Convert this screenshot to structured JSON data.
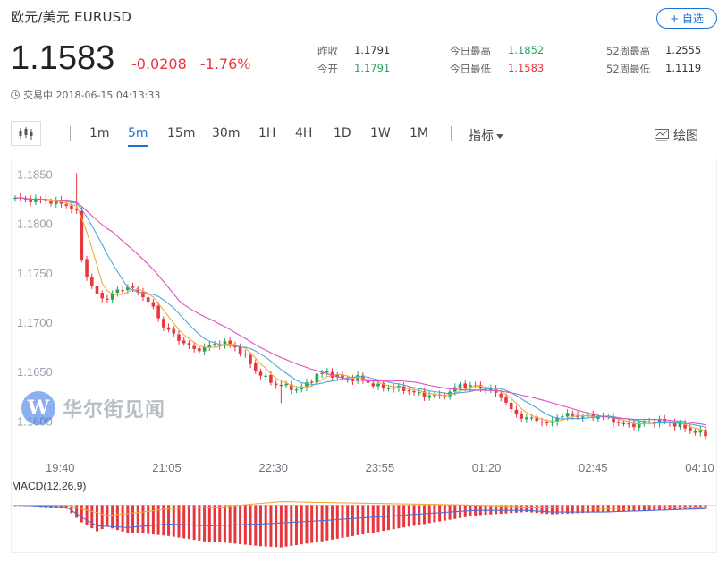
{
  "header": {
    "title": "欧元/美元  EURUSD",
    "price": "1.1583",
    "change": "-0.0208",
    "change_pct": "-1.76%",
    "status": "交易中 2018-06-15 04:13:33",
    "add_button": "+ 自选"
  },
  "stats": [
    {
      "label": "昨收",
      "value": "1.1791",
      "color": "#333333"
    },
    {
      "label": "今开",
      "value": "1.1791",
      "color": "#22a45b"
    },
    {
      "label": "今日最高",
      "value": "1.1852",
      "color": "#22a45b"
    },
    {
      "label": "今日最低",
      "value": "1.1583",
      "color": "#e9363d"
    },
    {
      "label": "52周最高",
      "value": "1.2555",
      "color": "#333333"
    },
    {
      "label": "52周最低",
      "value": "1.1119",
      "color": "#333333"
    }
  ],
  "toolbar": {
    "intervals": [
      "1m",
      "5m",
      "15m",
      "30m",
      "1H",
      "4H",
      "1D",
      "1W",
      "1M"
    ],
    "active_interval": "5m",
    "indicator": "指标",
    "draw": "绘图"
  },
  "watermark": {
    "text": "华尔街见闻",
    "logo_letter": "W"
  },
  "colors": {
    "up": "#22a45b",
    "down": "#e9363d",
    "ma_short": "#f2a93b",
    "ma_mid": "#4aa8e0",
    "ma_long": "#e04fc2",
    "macd_dif": "#4a6fd9",
    "macd_dea": "#f2a93b",
    "accent": "#1e6fd9"
  },
  "chart_data": {
    "type": "candlestick",
    "symbol": "EURUSD",
    "interval": "5m",
    "y_ticks": [
      "1.1850",
      "1.1800",
      "1.1750",
      "1.1700",
      "1.1650",
      "1.1600"
    ],
    "x_ticks": [
      "19:40",
      "21:05",
      "22:30",
      "23:55",
      "01:20",
      "02:45",
      "04:10"
    ],
    "ylim": [
      1.1575,
      1.1865
    ],
    "grid": false,
    "close_path": [
      [
        0,
        1.1826
      ],
      [
        6,
        1.1824
      ],
      [
        10,
        1.182
      ],
      [
        12,
        1.1812
      ],
      [
        13,
        1.1765
      ],
      [
        14,
        1.1748
      ],
      [
        15,
        1.1738
      ],
      [
        16,
        1.1728
      ],
      [
        18,
        1.1725
      ],
      [
        20,
        1.1733
      ],
      [
        22,
        1.1737
      ],
      [
        25,
        1.1728
      ],
      [
        27,
        1.1715
      ],
      [
        29,
        1.1697
      ],
      [
        31,
        1.1688
      ],
      [
        33,
        1.168
      ],
      [
        35,
        1.1673
      ],
      [
        37,
        1.1675
      ],
      [
        39,
        1.1679
      ],
      [
        41,
        1.168
      ],
      [
        43,
        1.1676
      ],
      [
        45,
        1.1666
      ],
      [
        47,
        1.1652
      ],
      [
        49,
        1.1644
      ],
      [
        51,
        1.1638
      ],
      [
        53,
        1.1636
      ],
      [
        55,
        1.1633
      ],
      [
        57,
        1.1638
      ],
      [
        59,
        1.1648
      ],
      [
        61,
        1.165
      ],
      [
        63,
        1.1646
      ],
      [
        65,
        1.1643
      ],
      [
        67,
        1.1645
      ],
      [
        69,
        1.164
      ],
      [
        71,
        1.1636
      ],
      [
        73,
        1.1635
      ],
      [
        75,
        1.1634
      ],
      [
        77,
        1.1632
      ],
      [
        79,
        1.1628
      ],
      [
        81,
        1.1627
      ],
      [
        83,
        1.1626
      ],
      [
        85,
        1.163
      ],
      [
        87,
        1.1638
      ],
      [
        89,
        1.1636
      ],
      [
        91,
        1.1635
      ],
      [
        93,
        1.1632
      ],
      [
        95,
        1.1626
      ],
      [
        96,
        1.162
      ],
      [
        97,
        1.1611
      ],
      [
        99,
        1.1605
      ],
      [
        101,
        1.1603
      ],
      [
        103,
        1.1601
      ],
      [
        104,
        1.1597
      ],
      [
        105,
        1.16
      ],
      [
        106,
        1.1606
      ],
      [
        108,
        1.1607
      ],
      [
        110,
        1.1606
      ],
      [
        112,
        1.1605
      ],
      [
        114,
        1.1606
      ],
      [
        116,
        1.1604
      ],
      [
        118,
        1.1599
      ],
      [
        120,
        1.1597
      ],
      [
        122,
        1.1598
      ],
      [
        124,
        1.16
      ],
      [
        126,
        1.1601
      ],
      [
        128,
        1.1599
      ],
      [
        130,
        1.1596
      ],
      [
        132,
        1.1592
      ],
      [
        135,
        1.1587
      ]
    ],
    "spikes": [
      {
        "i": 12,
        "high": 1.1852
      },
      {
        "i": 52,
        "low": 1.1619
      }
    ],
    "series": [
      {
        "name": "MA short",
        "kind": "line",
        "color": "#f2a93b"
      },
      {
        "name": "MA mid",
        "kind": "line",
        "color": "#4aa8e0"
      },
      {
        "name": "MA long",
        "kind": "line",
        "color": "#e04fc2"
      }
    ],
    "macd": {
      "label": "MACD(12,26,9)",
      "dif": [
        [
          0,
          0.0
        ],
        [
          10,
          -0.0001
        ],
        [
          13,
          -0.0007
        ],
        [
          16,
          -0.0012
        ],
        [
          22,
          -0.0013
        ],
        [
          30,
          -0.0011
        ],
        [
          38,
          -0.0012
        ],
        [
          48,
          -0.0011
        ],
        [
          60,
          -0.0009
        ],
        [
          75,
          -0.0006
        ],
        [
          90,
          -0.0003
        ],
        [
          100,
          -0.0003
        ],
        [
          105,
          -0.0004
        ],
        [
          115,
          -0.0004
        ],
        [
          125,
          -0.0003
        ],
        [
          135,
          -0.0002
        ]
      ],
      "dea": [
        [
          0,
          0.0
        ],
        [
          10,
          0.0
        ],
        [
          13,
          -0.0002
        ],
        [
          18,
          -0.0006
        ],
        [
          25,
          -0.0004
        ],
        [
          30,
          -0.0002
        ],
        [
          40,
          -0.0001
        ],
        [
          52,
          0.0002
        ],
        [
          70,
          0.0001
        ],
        [
          90,
          0.0
        ],
        [
          100,
          -0.0001
        ],
        [
          115,
          -0.0002
        ],
        [
          135,
          -0.0001
        ]
      ],
      "hist_ylim": [
        -0.0016,
        0.0006
      ]
    }
  }
}
